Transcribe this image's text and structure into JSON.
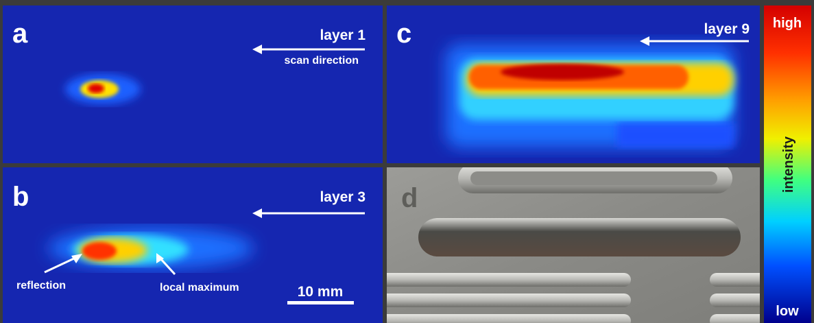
{
  "panels": {
    "a": {
      "label": "a",
      "layer": "layer 1",
      "note": "scan direction"
    },
    "b": {
      "label": "b",
      "layer": "layer 3",
      "annotations": [
        "reflection",
        "local maximum"
      ],
      "scale_bar": "10 mm"
    },
    "c": {
      "label": "c",
      "layer": "layer 9"
    },
    "d": {
      "label": "d"
    }
  },
  "colorbar": {
    "high": "high",
    "title": "intensity",
    "low": "low"
  }
}
